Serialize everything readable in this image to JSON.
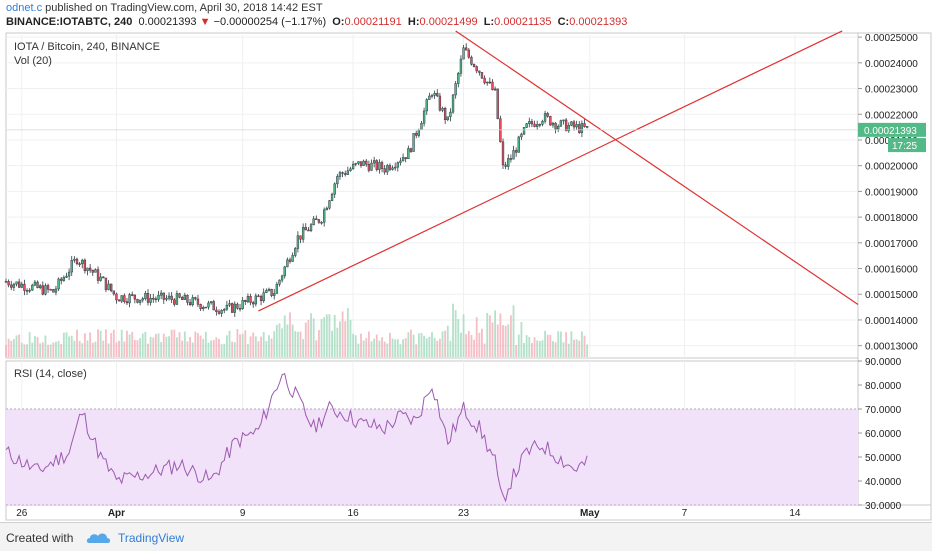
{
  "header": {
    "author": "odnet.c",
    "published": "published on TradingView.com, April 30, 2018 14:42 EST",
    "symbol": "BINANCE:IOTABTC, 240",
    "price": "0.00021393",
    "change_arrow": "▼",
    "change": "−0.00000254 (−1.17%)",
    "o_label": "O:",
    "o_value": "0.00021191",
    "h_label": "H:",
    "h_value": "0.00021499",
    "l_label": "L:",
    "l_value": "0.00021135",
    "c_label": "C:",
    "c_value": "0.00021393"
  },
  "legend": {
    "title": "IOTA / Bitcoin, 240, BINANCE",
    "volume": "Vol (20)",
    "rsi": "RSI (14, close)"
  },
  "footer": {
    "created": "Created with",
    "brand": "TradingView"
  },
  "colors": {
    "up": "#53b987",
    "down": "#eb4d5c",
    "trendline": "#e03131",
    "rsi_line": "#9c5ab0",
    "rsi_band": "#f1e2f9",
    "price_tag": "#53b987"
  },
  "chart_data": [
    {
      "type": "candlestick",
      "series_name": "IOTA / Bitcoin, 240, BINANCE",
      "y_ticks": [
        "0.00025000",
        "0.00024000",
        "0.00023000",
        "0.00022000",
        "0.00021000",
        "0.00020000",
        "0.00019000",
        "0.00018000",
        "0.00017000",
        "0.00016000",
        "0.00015000",
        "0.00014000",
        "0.00013000"
      ],
      "y_tick_values": [
        0.00025,
        0.00024,
        0.00023,
        0.00022,
        0.00021,
        0.0002,
        0.00019,
        0.00018,
        0.00017,
        0.00016,
        0.00015,
        0.00014,
        0.00013
      ],
      "ylim": [
        0.0001252,
        0.0002516
      ],
      "x_ticks": [
        "26",
        "Apr",
        "9",
        "16",
        "23",
        "May",
        "7",
        "14"
      ],
      "x_tick_days": [
        -5,
        1,
        9,
        16,
        23,
        31,
        37,
        44
      ],
      "x_range_days": [
        -6,
        48
      ],
      "last_price_label": "0.00021393",
      "last_price_value": 0.00021393,
      "countdown": "17:25",
      "countdown_value": 0.000208,
      "anchors": [
        {
          "day": -6,
          "close": 0.000155
        },
        {
          "day": -3,
          "close": 0.000151
        },
        {
          "day": -1.5,
          "close": 0.000164
        },
        {
          "day": 0,
          "close": 0.000156
        },
        {
          "day": 1,
          "close": 0.000149
        },
        {
          "day": 5,
          "close": 0.000148
        },
        {
          "day": 8,
          "close": 0.000144
        },
        {
          "day": 11,
          "close": 0.000151
        },
        {
          "day": 12.5,
          "close": 0.000172
        },
        {
          "day": 14,
          "close": 0.00018
        },
        {
          "day": 15,
          "close": 0.000196
        },
        {
          "day": 16.5,
          "close": 0.000201
        },
        {
          "day": 18,
          "close": 0.000199
        },
        {
          "day": 19.5,
          "close": 0.000205
        },
        {
          "day": 21,
          "close": 0.000229
        },
        {
          "day": 22,
          "close": 0.000217
        },
        {
          "day": 23,
          "close": 0.000245
        },
        {
          "day": 24,
          "close": 0.000237
        },
        {
          "day": 25,
          "close": 0.000228
        },
        {
          "day": 25.5,
          "close": 0.000199
        },
        {
          "day": 26,
          "close": 0.000203
        },
        {
          "day": 27,
          "close": 0.000215
        },
        {
          "day": 28,
          "close": 0.000219
        },
        {
          "day": 29,
          "close": 0.000216
        },
        {
          "day": 30,
          "close": 0.000215
        },
        {
          "day": 31,
          "close": 0.000214
        }
      ],
      "trendlines": [
        {
          "from": {
            "day": 10,
            "value": 0.0001435
          },
          "to": {
            "day": 47,
            "value": 0.0002524
          }
        },
        {
          "from": {
            "day": 22.5,
            "value": 0.0002524
          },
          "to": {
            "day": 48,
            "value": 0.000146
          }
        }
      ]
    },
    {
      "type": "bar",
      "series_name": "Vol (20)",
      "note": "volume bars under the price panel, with a 20-period moving average line"
    },
    {
      "type": "line",
      "series_name": "RSI (14, close)",
      "y_ticks": [
        "90.0000",
        "80.0000",
        "70.0000",
        "60.0000",
        "50.0000",
        "40.0000",
        "30.0000"
      ],
      "y_tick_values": [
        90,
        80,
        70,
        60,
        50,
        40,
        30
      ],
      "ylim": [
        30,
        90
      ],
      "band": [
        30,
        70
      ],
      "anchors": [
        {
          "day": -6,
          "rsi": 52
        },
        {
          "day": -4,
          "rsi": 44
        },
        {
          "day": -2,
          "rsi": 52
        },
        {
          "day": -1.2,
          "rsi": 69
        },
        {
          "day": 0,
          "rsi": 50
        },
        {
          "day": 1,
          "rsi": 40
        },
        {
          "day": 3,
          "rsi": 43
        },
        {
          "day": 5,
          "rsi": 47
        },
        {
          "day": 7,
          "rsi": 40
        },
        {
          "day": 8.5,
          "rsi": 56
        },
        {
          "day": 10,
          "rsi": 61
        },
        {
          "day": 11.5,
          "rsi": 85
        },
        {
          "day": 12.5,
          "rsi": 74
        },
        {
          "day": 13.5,
          "rsi": 62
        },
        {
          "day": 14.5,
          "rsi": 70
        },
        {
          "day": 15.5,
          "rsi": 68
        },
        {
          "day": 16.5,
          "rsi": 64
        },
        {
          "day": 18,
          "rsi": 62
        },
        {
          "day": 19,
          "rsi": 67
        },
        {
          "day": 20,
          "rsi": 65
        },
        {
          "day": 21,
          "rsi": 81
        },
        {
          "day": 22,
          "rsi": 56
        },
        {
          "day": 23,
          "rsi": 70
        },
        {
          "day": 24,
          "rsi": 62
        },
        {
          "day": 25,
          "rsi": 48
        },
        {
          "day": 25.4,
          "rsi": 31
        },
        {
          "day": 26,
          "rsi": 40
        },
        {
          "day": 27,
          "rsi": 52
        },
        {
          "day": 28,
          "rsi": 55
        },
        {
          "day": 29,
          "rsi": 50
        },
        {
          "day": 30,
          "rsi": 45
        },
        {
          "day": 31,
          "rsi": 48
        }
      ]
    }
  ]
}
